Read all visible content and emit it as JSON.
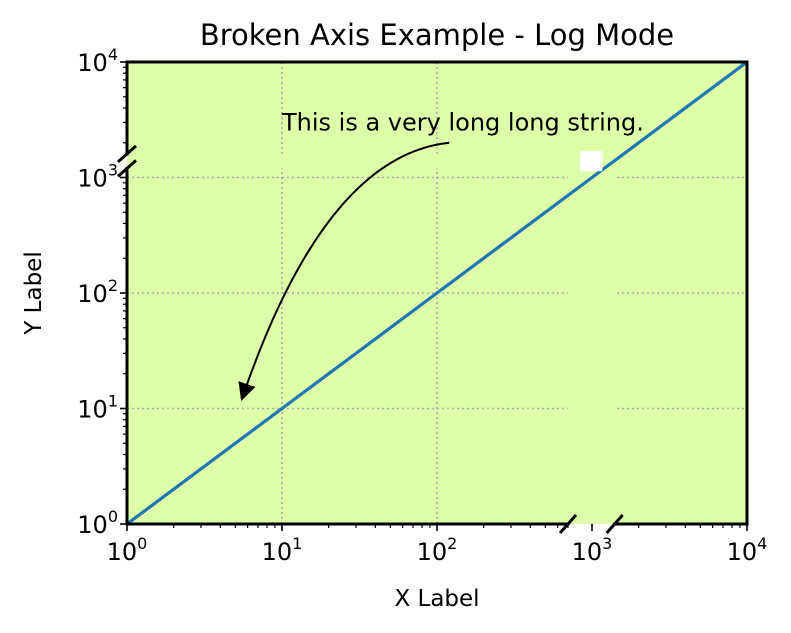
{
  "chart_data": {
    "type": "line",
    "title": "Broken Axis Example - Log Mode",
    "xlabel": "X Label",
    "ylabel": "Y Label",
    "xscale": "log",
    "yscale": "log",
    "xlim": [
      1,
      10000
    ],
    "ylim": [
      1,
      10000
    ],
    "x_ticks": [
      {
        "mantissa": "10",
        "exponent": "0"
      },
      {
        "mantissa": "10",
        "exponent": "1"
      },
      {
        "mantissa": "10",
        "exponent": "2"
      },
      {
        "mantissa": "10",
        "exponent": "3"
      },
      {
        "mantissa": "10",
        "exponent": "4"
      }
    ],
    "y_ticks": [
      {
        "mantissa": "10",
        "exponent": "0"
      },
      {
        "mantissa": "10",
        "exponent": "1"
      },
      {
        "mantissa": "10",
        "exponent": "2"
      },
      {
        "mantissa": "10",
        "exponent": "3"
      },
      {
        "mantissa": "10",
        "exponent": "4"
      }
    ],
    "x_break": [
      700,
      1400
    ],
    "y_break": [
      1200,
      1600
    ],
    "grid": true,
    "series": [
      {
        "x": [
          1,
          10,
          100,
          1000,
          10000
        ],
        "y": [
          1,
          10,
          100,
          1000,
          10000
        ],
        "color": "#1f77b4"
      }
    ],
    "annotation": {
      "text": "This is a very long long string.",
      "text_x": 10,
      "text_y": 3000,
      "arrow_from": [
        120,
        2000
      ],
      "arrow_to": [
        5.5,
        12
      ]
    },
    "colors": {
      "plot_background": "#ddffaa",
      "line": "#1f77b4",
      "grid": "#aaaaaa"
    }
  }
}
